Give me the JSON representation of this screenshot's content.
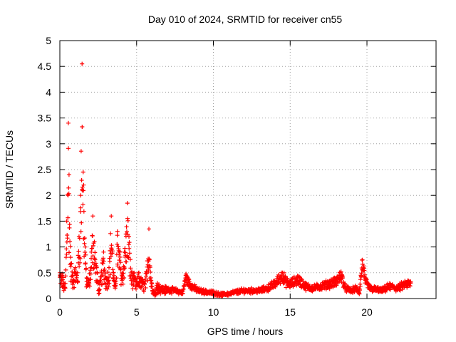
{
  "chart_data": {
    "type": "scatter",
    "title": "Day 010 of 2024, SRMTID for receiver cn55",
    "xlabel": "GPS time / hours",
    "ylabel": "SRMTID / TECUs",
    "xlim": [
      0,
      24.5
    ],
    "ylim": [
      0,
      5
    ],
    "xticks": [
      0,
      5,
      10,
      15,
      20
    ],
    "yticks": [
      0,
      0.5,
      1,
      1.5,
      2,
      2.5,
      3,
      3.5,
      4,
      4.5,
      5
    ],
    "xtick_labels": [
      "0",
      "5",
      "10",
      "15",
      "20"
    ],
    "ytick_labels": [
      "0",
      "0.5",
      "1",
      "1.5",
      "2",
      "2.5",
      "3",
      "3.5",
      "4",
      "4.5",
      "5"
    ],
    "grid": true,
    "marker": "+",
    "color": "#ff0000",
    "series": [
      {
        "name": "SRMTID",
        "profile": [
          [
            0.0,
            0.5
          ],
          [
            0.15,
            0.45
          ],
          [
            0.25,
            0.3
          ],
          [
            0.35,
            0.2
          ],
          [
            0.45,
            1.5
          ],
          [
            0.55,
            3.4
          ],
          [
            0.6,
            2.4
          ],
          [
            0.7,
            0.8
          ],
          [
            0.85,
            0.45
          ],
          [
            1.0,
            0.6
          ],
          [
            1.15,
            0.5
          ],
          [
            1.25,
            1.2
          ],
          [
            1.35,
            2.0
          ],
          [
            1.45,
            4.55
          ],
          [
            1.55,
            2.2
          ],
          [
            1.65,
            1.0
          ],
          [
            1.75,
            0.4
          ],
          [
            1.9,
            0.35
          ],
          [
            2.05,
            0.9
          ],
          [
            2.15,
            1.6
          ],
          [
            2.25,
            1.1
          ],
          [
            2.4,
            0.6
          ],
          [
            2.55,
            0.15
          ],
          [
            2.7,
            0.5
          ],
          [
            2.85,
            0.9
          ],
          [
            3.0,
            0.4
          ],
          [
            3.2,
            0.6
          ],
          [
            3.35,
            1.6
          ],
          [
            3.5,
            0.5
          ],
          [
            3.6,
            0.2
          ],
          [
            3.75,
            1.3
          ],
          [
            3.9,
            0.9
          ],
          [
            4.05,
            0.5
          ],
          [
            4.2,
            0.9
          ],
          [
            4.3,
            1.25
          ],
          [
            4.4,
            1.85
          ],
          [
            4.5,
            1.2
          ],
          [
            4.65,
            0.5
          ],
          [
            4.8,
            0.45
          ],
          [
            5.0,
            0.3
          ],
          [
            5.15,
            0.5
          ],
          [
            5.3,
            0.35
          ],
          [
            5.5,
            0.3
          ],
          [
            5.65,
            0.5
          ],
          [
            5.8,
            1.35
          ],
          [
            5.95,
            0.35
          ],
          [
            6.1,
            0.15
          ],
          [
            6.2,
            0.05
          ],
          [
            6.35,
            0.3
          ],
          [
            6.6,
            0.2
          ],
          [
            7.0,
            0.18
          ],
          [
            7.5,
            0.15
          ],
          [
            8.0,
            0.1
          ],
          [
            8.2,
            0.45
          ],
          [
            8.35,
            0.35
          ],
          [
            8.6,
            0.25
          ],
          [
            9.0,
            0.15
          ],
          [
            9.5,
            0.12
          ],
          [
            10.0,
            0.1
          ],
          [
            10.5,
            0.06
          ],
          [
            11.0,
            0.08
          ],
          [
            11.5,
            0.12
          ],
          [
            12.0,
            0.15
          ],
          [
            12.5,
            0.15
          ],
          [
            13.0,
            0.15
          ],
          [
            13.5,
            0.2
          ],
          [
            14.0,
            0.3
          ],
          [
            14.5,
            0.5
          ],
          [
            14.7,
            0.35
          ],
          [
            15.0,
            0.3
          ],
          [
            15.5,
            0.4
          ],
          [
            16.0,
            0.25
          ],
          [
            16.5,
            0.2
          ],
          [
            17.0,
            0.25
          ],
          [
            17.5,
            0.3
          ],
          [
            18.0,
            0.35
          ],
          [
            18.3,
            0.5
          ],
          [
            18.6,
            0.2
          ],
          [
            19.0,
            0.15
          ],
          [
            19.3,
            0.2
          ],
          [
            19.5,
            0.1
          ],
          [
            19.7,
            0.75
          ],
          [
            19.9,
            0.35
          ],
          [
            20.2,
            0.2
          ],
          [
            21.0,
            0.15
          ],
          [
            21.5,
            0.25
          ],
          [
            22.0,
            0.2
          ],
          [
            22.5,
            0.3
          ],
          [
            22.85,
            0.3
          ]
        ]
      }
    ]
  }
}
